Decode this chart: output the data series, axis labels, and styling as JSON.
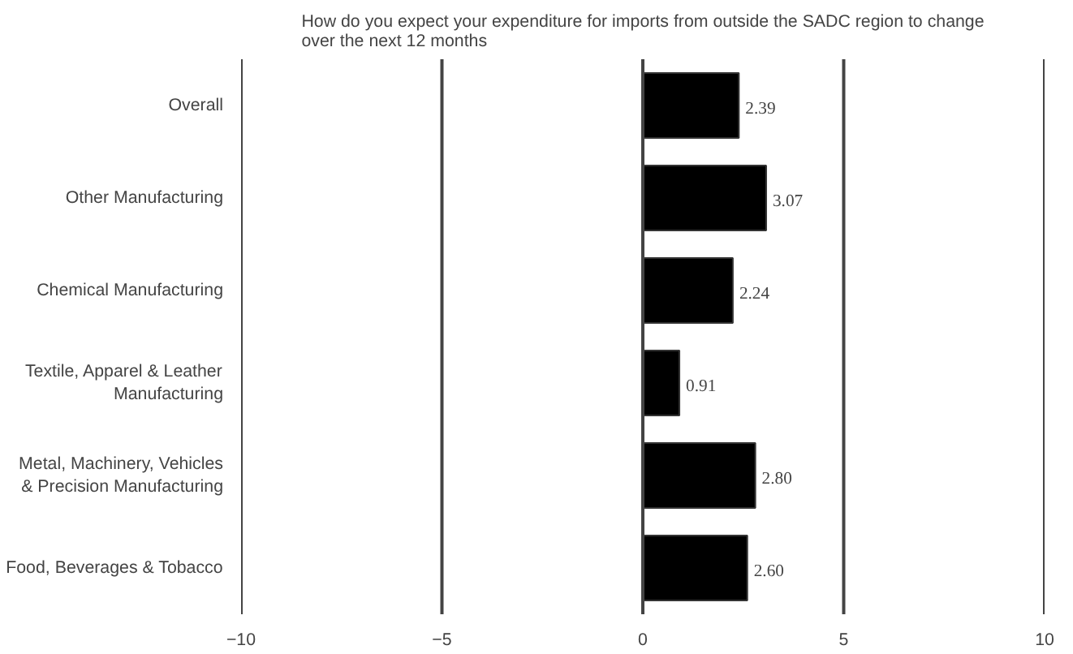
{
  "chart_data": {
    "type": "bar",
    "orientation": "horizontal",
    "title": "How do you expect your expenditure for imports from outside the SADC region to change over the next 12 months",
    "categories": [
      "Overall",
      "Other Manufacturing",
      "Chemical Manufacturing",
      "Textile, Apparel & Leather Manufacturing",
      "Metal, Machinery, Vehicles & Precision Manufacturing",
      "Food, Beverages & Tobacco"
    ],
    "values": [
      2.39,
      3.07,
      2.24,
      0.91,
      2.8,
      2.6
    ],
    "value_labels": [
      "2.39",
      "3.07",
      "2.24",
      "0.91",
      "2.80",
      "2.60"
    ],
    "color": "#000000",
    "xlim": [
      -10,
      10
    ],
    "xticks": [
      -10,
      -5,
      0,
      5,
      10
    ],
    "grid": "x"
  }
}
